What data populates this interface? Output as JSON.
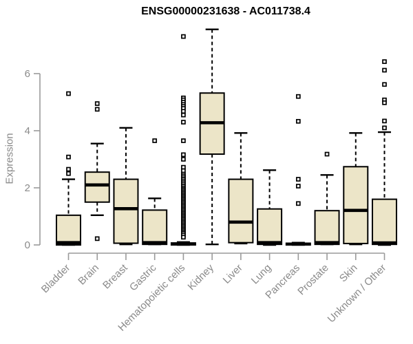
{
  "chart_data": {
    "type": "boxplot",
    "title": "ENSG00000231638 - AC011738.4",
    "ylabel": "Expression",
    "xlabel": "",
    "yticks": [
      0,
      2,
      4,
      6
    ],
    "ylim": [
      -0.3,
      7.6
    ],
    "grid": false,
    "legend": "none",
    "colors": {
      "box_fill": "#ece5c8",
      "box_stroke": "#000000",
      "median": "#000000",
      "whisker": "#000000",
      "outlier_stroke": "#000000",
      "outlier_fill": "#ffffff",
      "axis_line": "#9a9a9a",
      "tick_text": "#8a8a8a",
      "title_text": "#000000",
      "background": "#ffffff"
    },
    "categories": [
      "Bladder",
      "Brain",
      "Breast",
      "Gastric",
      "Hematopoietic cells",
      "Kidney",
      "Liver",
      "Lung",
      "Pancreas",
      "Prostate",
      "Skin",
      "Unknown / Other"
    ],
    "boxes": [
      {
        "category": "Bladder",
        "low": 0.0,
        "q1": 0.0,
        "median": 0.08,
        "q3": 1.04,
        "high": 2.3,
        "outliers": [
          5.3,
          3.08,
          2.65,
          2.5
        ]
      },
      {
        "category": "Brain",
        "low": 1.04,
        "q1": 1.5,
        "median": 2.1,
        "q3": 2.55,
        "high": 3.55,
        "outliers": [
          4.95,
          4.75,
          0.22
        ]
      },
      {
        "category": "Breast",
        "low": 0.02,
        "q1": 0.06,
        "median": 1.27,
        "q3": 2.3,
        "high": 4.1,
        "outliers": []
      },
      {
        "category": "Gastric",
        "low": 0.02,
        "q1": 0.02,
        "median": 0.08,
        "q3": 1.22,
        "high": 1.63,
        "outliers": [
          3.65
        ]
      },
      {
        "category": "Hematopoietic cells",
        "low": 0.0,
        "q1": 0.0,
        "median": 0.03,
        "q3": 0.07,
        "high": 0.1,
        "outliers": [
          7.3,
          5.15,
          5.08,
          5.0,
          4.92,
          4.85,
          4.78,
          4.68,
          4.55,
          4.3,
          3.65,
          3.16,
          3.0,
          2.72,
          2.6,
          2.48,
          2.42,
          2.36,
          2.3,
          2.24,
          2.18,
          2.12,
          2.06,
          2.0,
          1.95,
          1.9,
          1.85,
          1.8,
          1.75,
          1.7,
          1.65,
          1.6,
          1.55,
          1.5,
          1.45,
          1.4,
          1.35,
          1.3,
          1.25,
          1.2,
          1.15,
          1.1,
          1.05,
          1.0,
          0.95,
          0.9,
          0.85,
          0.8,
          0.75,
          0.7,
          0.65,
          0.6,
          0.55,
          0.5,
          0.45,
          0.4,
          0.34,
          0.27
        ]
      },
      {
        "category": "Kidney",
        "low": 0.02,
        "q1": 3.18,
        "median": 4.28,
        "q3": 5.32,
        "high": 7.55,
        "outliers": []
      },
      {
        "category": "Liver",
        "low": 0.05,
        "q1": 0.08,
        "median": 0.8,
        "q3": 2.3,
        "high": 3.92,
        "outliers": []
      },
      {
        "category": "Lung",
        "low": 0.0,
        "q1": 0.02,
        "median": 0.08,
        "q3": 1.26,
        "high": 2.62,
        "outliers": []
      },
      {
        "category": "Pancreas",
        "low": 0.0,
        "q1": 0.0,
        "median": 0.03,
        "q3": 0.06,
        "high": 0.08,
        "outliers": [
          5.2,
          4.33,
          2.3,
          2.06,
          1.45
        ]
      },
      {
        "category": "Prostate",
        "low": 0.02,
        "q1": 0.02,
        "median": 0.08,
        "q3": 1.2,
        "high": 2.45,
        "outliers": [
          3.18
        ]
      },
      {
        "category": "Skin",
        "low": 0.02,
        "q1": 0.05,
        "median": 1.21,
        "q3": 2.74,
        "high": 3.92,
        "outliers": []
      },
      {
        "category": "Unknown / Other",
        "low": 0.0,
        "q1": 0.02,
        "median": 0.07,
        "q3": 1.6,
        "high": 3.95,
        "outliers": [
          6.42,
          6.12,
          5.62,
          5.08,
          4.98,
          4.34,
          4.1
        ]
      }
    ]
  }
}
